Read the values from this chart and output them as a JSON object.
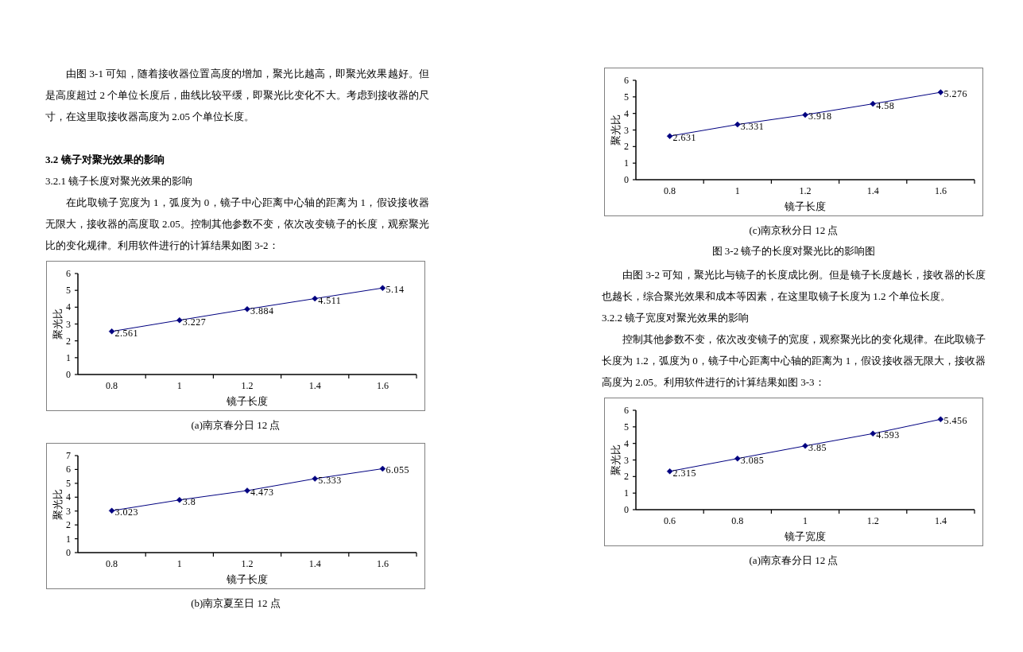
{
  "chart_data": [
    {
      "type": "other",
      "annotations": [
        "由图 3-1 可知，随着接收器位置高度的增加，聚光比越高，即聚光效果越好。但是高度超过 2 个单位长度后，曲线比较平缓，即聚光比变化不大。考虑到接收器的尺寸，在这里取接收器高度为 2.05 个单位长度。"
      ]
    },
    {
      "type": "other",
      "title": "3.2 镜子对聚光效果的影响",
      "subtitle": "3.2.1 镜子长度对聚光效果的影响",
      "annotations": [
        "在此取镜子宽度为 1，弧度为 0，镜子中心距离中心轴的距离为 1，假设接收器无限大，接收器的高度取 2.05。控制其他参数不变，依次改变镜子的长度，观察聚光比的变化规律。利用软件进行的计算结果如图 3-2："
      ]
    },
    {
      "type": "line",
      "categories": [
        "0.8",
        "1",
        "1.2",
        "1.4",
        "1.6"
      ],
      "series": [
        {
          "color": "#000080",
          "values": [
            2.561,
            3.227,
            3.884,
            4.511,
            5.14
          ]
        }
      ],
      "ylim": [
        0,
        6
      ],
      "yticks": [
        0,
        1,
        2,
        3,
        4,
        5,
        6
      ],
      "xlabel": "镜子长度",
      "ylabel": "聚光比",
      "marker": "diamond",
      "data_labels": true,
      "annotations": [
        "(a)南京春分日 12 点"
      ]
    },
    {
      "type": "line",
      "categories": [
        "0.8",
        "1",
        "1.2",
        "1.4",
        "1.6"
      ],
      "series": [
        {
          "color": "#000080",
          "values": [
            3.023,
            3.8,
            4.473,
            5.333,
            6.055
          ]
        }
      ],
      "ylim": [
        0,
        7
      ],
      "yticks": [
        0,
        1,
        2,
        3,
        4,
        5,
        6,
        7
      ],
      "xlabel": "镜子长度",
      "ylabel": "聚光比",
      "marker": "diamond",
      "data_labels": true,
      "annotations": [
        "(b)南京夏至日 12 点"
      ]
    },
    {
      "type": "line",
      "categories": [
        "0.8",
        "1",
        "1.2",
        "1.4",
        "1.6"
      ],
      "series": [
        {
          "color": "#000080",
          "values": [
            2.631,
            3.331,
            3.918,
            4.58,
            5.276
          ]
        }
      ],
      "ylim": [
        0,
        6
      ],
      "yticks": [
        0,
        1,
        2,
        3,
        4,
        5,
        6
      ],
      "xlabel": "镜子长度",
      "ylabel": "聚光比",
      "marker": "diamond",
      "data_labels": true,
      "annotations": [
        "(c)南京秋分日 12 点",
        "图 3-2 镜子的长度对聚光比的影响图"
      ]
    },
    {
      "type": "other",
      "annotations": [
        "由图 3-2 可知，聚光比与镜子的长度成比例。但是镜子长度越长，接收器的长度也越长，综合聚光效果和成本等因素，在这里取镜子长度为 1.2 个单位长度。"
      ]
    },
    {
      "type": "other",
      "subtitle": "3.2.2 镜子宽度对聚光效果的影响",
      "annotations": [
        "控制其他参数不变，依次改变镜子的宽度，观察聚光比的变化规律。在此取镜子长度为 1.2，弧度为 0，镜子中心距离中心轴的距离为 1，假设接收器无限大，接收器高度为 2.05。利用软件进行的计算结果如图 3-3："
      ]
    },
    {
      "type": "line",
      "categories": [
        "0.6",
        "0.8",
        "1",
        "1.2",
        "1.4"
      ],
      "series": [
        {
          "color": "#000080",
          "values": [
            2.315,
            3.085,
            3.85,
            4.593,
            5.456
          ]
        }
      ],
      "ylim": [
        0,
        6
      ],
      "yticks": [
        0,
        1,
        2,
        3,
        4,
        5,
        6
      ],
      "xlabel": "镜子宽度",
      "ylabel": "聚光比",
      "marker": "diamond",
      "data_labels": true,
      "annotations": [
        "(a)南京春分日 12 点"
      ]
    }
  ]
}
